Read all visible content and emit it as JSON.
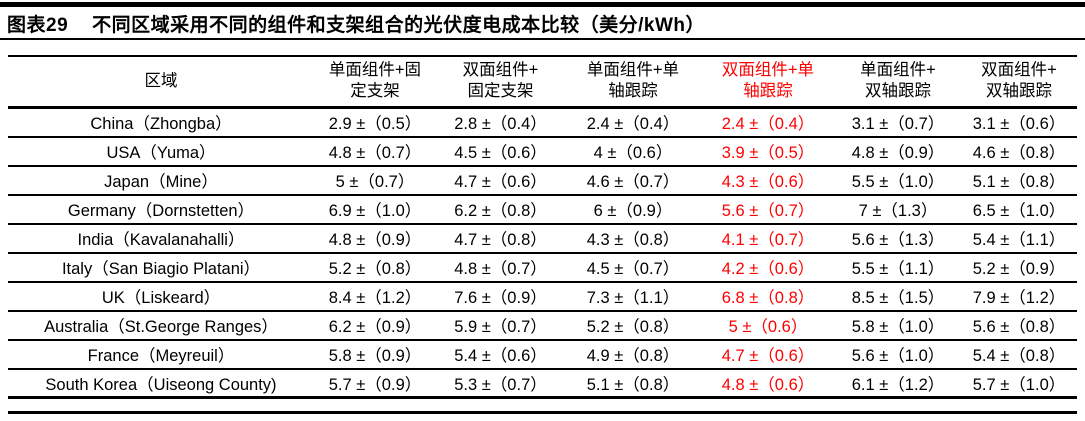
{
  "title": {
    "label": "图表29",
    "text": "不同区域采用不同的组件和支架组合的光伏度电成本比较（美分/kWh）"
  },
  "colors": {
    "highlight_red": "#ff0000",
    "text_black": "#000000"
  },
  "table": {
    "region_header": "区域",
    "highlight_column_index": 3,
    "column_headers": [
      {
        "text": "单面组件+固定支架",
        "line1": "单面组件+固",
        "line2": "定支架",
        "highlight": false
      },
      {
        "text": "双面组件+固定支架",
        "line1": "双面组件+",
        "line2": "固定支架",
        "highlight": false
      },
      {
        "text": "单面组件+单轴跟踪",
        "line1": "单面组件+单",
        "line2": "轴跟踪",
        "highlight": false
      },
      {
        "text": "双面组件+单轴跟踪",
        "line1": "双面组件+单",
        "line2": "轴跟踪",
        "highlight": true
      },
      {
        "text": "单面组件+双轴跟踪",
        "line1": "单面组件+",
        "line2": "双轴跟踪",
        "highlight": false
      },
      {
        "text": "双面组件+双轴跟踪",
        "line1": "双面组件+",
        "line2": "双轴跟踪",
        "highlight": false
      }
    ],
    "rows": [
      {
        "region": "China（Zhongba）",
        "values": [
          "2.9 ±（0.5）",
          "2.8 ±（0.4）",
          "2.4 ±（0.4）",
          "2.4 ±（0.4）",
          "3.1 ±（0.7）",
          "3.1 ±（0.6）"
        ]
      },
      {
        "region": "USA（Yuma）",
        "values": [
          "4.8 ±（0.7）",
          "4.5 ±（0.6）",
          "4 ±（0.6）",
          "3.9 ±（0.5）",
          "4.8 ±（0.9）",
          "4.6 ±（0.8）"
        ]
      },
      {
        "region": "Japan（Mine）",
        "values": [
          "5 ±（0.7）",
          "4.7 ±（0.6）",
          "4.6 ±（0.7）",
          "4.3 ±（0.6）",
          "5.5 ±（1.0）",
          "5.1 ±（0.8）"
        ]
      },
      {
        "region": "Germany（Dornstetten）",
        "values": [
          "6.9 ±（1.0）",
          "6.2 ±（0.8）",
          "6 ±（0.9）",
          "5.6 ±（0.7）",
          "7 ±（1.3）",
          "6.5 ±（1.0）"
        ]
      },
      {
        "region": "India（Kavalanahalli）",
        "values": [
          "4.8 ±（0.9）",
          "4.7 ±（0.8）",
          "4.3 ±（0.8）",
          "4.1 ±（0.7）",
          "5.6 ±（1.3）",
          "5.4 ±（1.1）"
        ]
      },
      {
        "region": "Italy（San Biagio Platani）",
        "values": [
          "5.2 ±（0.8）",
          "4.8 ±（0.7）",
          "4.5 ±（0.7）",
          "4.2 ±（0.6）",
          "5.5 ±（1.1）",
          "5.2 ±（0.9）"
        ]
      },
      {
        "region": "UK（Liskeard）",
        "values": [
          "8.4 ±（1.2）",
          "7.6 ±（0.9）",
          "7.3 ±（1.1）",
          "6.8 ±（0.8）",
          "8.5 ±（1.5）",
          "7.9 ±（1.2）"
        ]
      },
      {
        "region": "Australia（St.George Ranges）",
        "values": [
          "6.2 ±（0.9）",
          "5.9 ±（0.7）",
          "5.2 ±（0.8）",
          "5 ±（0.6）",
          "5.8 ±（1.0）",
          "5.6 ±（0.8）"
        ]
      },
      {
        "region": "France（Meyreuil）",
        "values": [
          "5.8 ±（0.9）",
          "5.4 ±（0.6）",
          "4.9 ±（0.8）",
          "4.7 ±（0.6）",
          "5.6 ±（1.0）",
          "5.4 ±（0.8）"
        ]
      },
      {
        "region": "South Korea（Uiseong County)",
        "values": [
          "5.7 ±（0.9）",
          "5.3 ±（0.7）",
          "5.1 ±（0.8）",
          "4.8 ±（0.6）",
          "6.1 ±（1.2）",
          "5.7 ±（1.0）"
        ]
      }
    ]
  }
}
